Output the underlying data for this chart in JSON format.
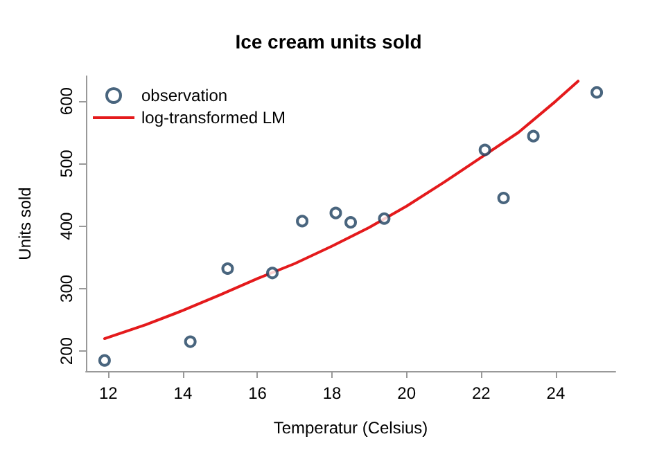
{
  "chart_data": {
    "type": "scatter",
    "title": "Ice cream units sold",
    "xlabel": "Temperatur (Celsius)",
    "ylabel": "Units sold",
    "xlim": [
      11.4,
      25.6
    ],
    "xticks": [
      12,
      14,
      16,
      18,
      20,
      22,
      24
    ],
    "ylim": [
      168,
      640
    ],
    "yticks": [
      200,
      300,
      400,
      500,
      600
    ],
    "grid": false,
    "legend": "top left",
    "marker": "circle",
    "series": [
      {
        "name": "observation",
        "color": "#1b3f5e",
        "x": [
          11.9,
          14.2,
          15.2,
          16.4,
          17.2,
          18.1,
          18.5,
          19.4,
          22.1,
          22.6,
          23.4,
          25.1
        ],
        "values": [
          185,
          215,
          332,
          325,
          408,
          421,
          406,
          412,
          522,
          445,
          544,
          614
        ]
      },
      {
        "name": "log-transformed LM",
        "type": "line",
        "color": "#e41a1c",
        "marker": "none",
        "x": [
          11.9,
          13,
          14,
          15,
          16,
          17,
          18,
          19,
          20,
          21,
          22,
          23,
          24,
          24.6
        ],
        "values": [
          220,
          242,
          265,
          290,
          316,
          340,
          368,
          398,
          432,
          470,
          510,
          550,
          600,
          632
        ]
      }
    ]
  }
}
